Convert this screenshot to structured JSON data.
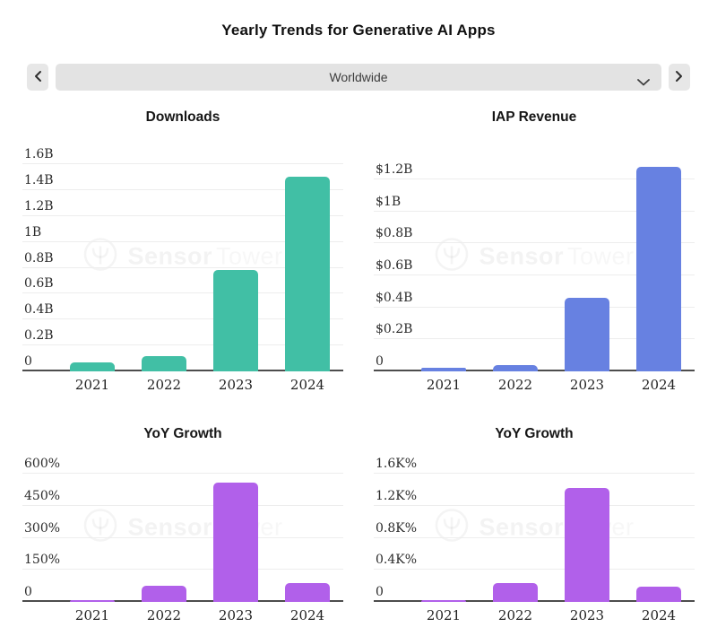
{
  "page": {
    "title": "Yearly Trends for Generative AI Apps"
  },
  "controls": {
    "prev_icon": "chevron-left",
    "next_icon": "chevron-right",
    "region_selector": {
      "value": "Worldwide",
      "icon": "chevron-down"
    }
  },
  "watermark": {
    "brand_bold": "Sensor",
    "brand_light": "Tower",
    "logo": "sensor-tower-ring-logo"
  },
  "colors": {
    "downloads_bar": "#41bfa5",
    "revenue_bar": "#6781e1",
    "growth_bar": "#b160ea",
    "control_bg": "#e3e3e3",
    "axis": "#4d4d4d",
    "gridline": "#ededed"
  },
  "chart_data": [
    {
      "id": "downloads",
      "type": "bar",
      "title": "Downloads",
      "categories": [
        "2021",
        "2022",
        "2023",
        "2024"
      ],
      "values": [
        0.07,
        0.12,
        0.78,
        1.5
      ],
      "unit": "B downloads",
      "ylim": [
        0,
        1.6
      ],
      "grid": true,
      "legend": "none",
      "bar_color": "#41bfa5",
      "y_ticks": [
        {
          "label": "0",
          "v": 0
        },
        {
          "label": "0.2B",
          "v": 0.2
        },
        {
          "label": "0.4B",
          "v": 0.4
        },
        {
          "label": "0.6B",
          "v": 0.6
        },
        {
          "label": "0.8B",
          "v": 0.8
        },
        {
          "label": "1B",
          "v": 1.0
        },
        {
          "label": "1.2B",
          "v": 1.2
        },
        {
          "label": "1.4B",
          "v": 1.4
        },
        {
          "label": "1.6B",
          "v": 1.6
        }
      ]
    },
    {
      "id": "iap_revenue",
      "type": "bar",
      "title": "IAP Revenue",
      "categories": [
        "2021",
        "2022",
        "2023",
        "2024"
      ],
      "values": [
        0.02,
        0.04,
        0.46,
        1.28
      ],
      "unit": "$B",
      "ylim": [
        0,
        1.2
      ],
      "grid": true,
      "legend": "none",
      "bar_color": "#6781e1",
      "y_ticks": [
        {
          "label": "0",
          "v": 0
        },
        {
          "label": "$0.2B",
          "v": 0.2
        },
        {
          "label": "$0.4B",
          "v": 0.4
        },
        {
          "label": "$0.6B",
          "v": 0.6
        },
        {
          "label": "$0.8B",
          "v": 0.8
        },
        {
          "label": "$1B",
          "v": 1.0
        },
        {
          "label": "$1.2B",
          "v": 1.2
        }
      ]
    },
    {
      "id": "yoy_growth_downloads",
      "type": "bar",
      "title": "YoY Growth",
      "categories": [
        "2021",
        "2022",
        "2023",
        "2024"
      ],
      "values": [
        5,
        75,
        560,
        88
      ],
      "unit": "%",
      "ylim": [
        0,
        600
      ],
      "grid": true,
      "legend": "none",
      "bar_color": "#b160ea",
      "y_ticks": [
        {
          "label": "0",
          "v": 0
        },
        {
          "label": "150%",
          "v": 150
        },
        {
          "label": "300%",
          "v": 300
        },
        {
          "label": "450%",
          "v": 450
        },
        {
          "label": "600%",
          "v": 600
        }
      ]
    },
    {
      "id": "yoy_growth_revenue",
      "type": "bar",
      "title": "YoY Growth",
      "categories": [
        "2021",
        "2022",
        "2023",
        "2024"
      ],
      "values": [
        0.01,
        0.24,
        1.42,
        0.19
      ],
      "unit": "K%",
      "ylim": [
        0,
        1.6
      ],
      "grid": true,
      "legend": "none",
      "bar_color": "#b160ea",
      "y_ticks": [
        {
          "label": "0",
          "v": 0
        },
        {
          "label": "0.4K%",
          "v": 0.4
        },
        {
          "label": "0.8K%",
          "v": 0.8
        },
        {
          "label": "1.2K%",
          "v": 1.2
        },
        {
          "label": "1.6K%",
          "v": 1.6
        }
      ]
    }
  ]
}
